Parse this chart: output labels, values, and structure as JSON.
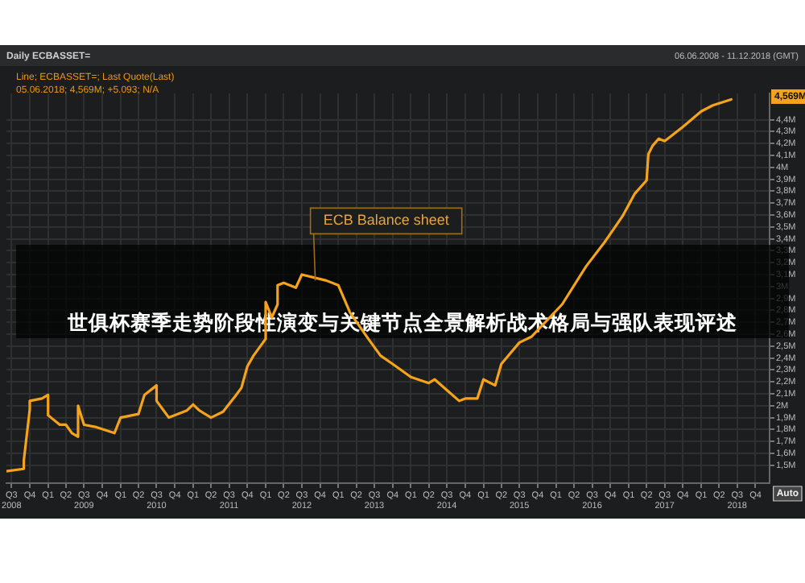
{
  "chart_data": {
    "type": "line",
    "title": "世俱杯赛季走势阶段性演变与关键节点全景解析战术格局与强队表现评述",
    "annotations": [
      "Daily ECBASSET=",
      "Line; ECBASSET=; Last Quote(Last)",
      "05.06.2018; 4,569M; +5.093; N/A",
      "06.06.2008 - 11.12.2018 (GMT)",
      "4,569M",
      "Auto",
      {
        "text": "ECB Balance sheet",
        "x": "2012-10",
        "y": 3.05
      }
    ],
    "x": [
      "2008-06-06",
      "2008-09",
      "2008-09",
      "2008-10",
      "2008-10",
      "2008-12",
      "2009-01",
      "2009-01",
      "2009-03",
      "2009-04",
      "2009-05",
      "2009-06",
      "2009-06",
      "2009-07",
      "2009-09",
      "2009-12",
      "2010-01",
      "2010-04",
      "2010-05",
      "2010-07",
      "2010-07",
      "2010-09",
      "2010-12",
      "2011-01",
      "2011-02",
      "2011-04",
      "2011-06",
      "2011-08",
      "2011-09",
      "2011-10",
      "2011-11",
      "2012-01",
      "2012-01",
      "2012-02",
      "2012-03",
      "2012-03",
      "2012-04",
      "2012-06",
      "2012-07",
      "2012-11",
      "2013-01",
      "2013-03",
      "2013-06",
      "2013-08",
      "2013-10",
      "2014-01",
      "2014-04",
      "2014-05",
      "2014-07",
      "2014-09",
      "2014-10",
      "2014-12",
      "2015-01",
      "2015-03",
      "2015-04",
      "2015-07",
      "2015-09",
      "2016-02",
      "2016-06",
      "2016-09",
      "2016-12",
      "2017-02",
      "2017-04-01",
      "2017-04-10",
      "2017-05",
      "2017-06",
      "2017-07",
      "2017-10",
      "2018-01",
      "2018-03",
      "2018-06"
    ],
    "series": [
      {
        "color": "#f5a31a",
        "values": [
          1.45,
          1.47,
          1.54,
          1.97,
          2.04,
          2.06,
          2.09,
          1.92,
          1.84,
          1.84,
          1.77,
          1.74,
          2.0,
          1.84,
          1.82,
          1.77,
          1.9,
          1.93,
          2.09,
          2.17,
          2.04,
          1.9,
          1.96,
          2.01,
          1.96,
          1.9,
          1.95,
          2.08,
          2.15,
          2.33,
          2.42,
          2.56,
          2.87,
          2.74,
          2.85,
          3.01,
          3.03,
          2.99,
          3.1,
          3.05,
          3.01,
          2.78,
          2.56,
          2.42,
          2.35,
          2.24,
          2.19,
          2.22,
          2.13,
          2.04,
          2.06,
          2.06,
          2.22,
          2.17,
          2.35,
          2.53,
          2.58,
          2.85,
          3.17,
          3.37,
          3.59,
          3.78,
          3.89,
          4.11,
          4.18,
          4.24,
          4.22,
          4.34,
          4.47,
          4.52,
          4.57
        ]
      }
    ],
    "xlim": [
      "2008-06-06",
      "2018-12-11"
    ],
    "xticks": [
      {
        "value": "2008-07-01",
        "label": "Q3\n2008"
      },
      {
        "value": "2008-10-01",
        "label": "Q4"
      },
      {
        "value": "2009-01-01",
        "label": "Q1"
      },
      {
        "value": "2009-04-01",
        "label": "Q2"
      },
      {
        "value": "2009-07-01",
        "label": "Q3\n2009"
      },
      {
        "value": "2009-10-01",
        "label": "Q4"
      },
      {
        "value": "2010-01-01",
        "label": "Q1"
      },
      {
        "value": "2010-04-01",
        "label": "Q2"
      },
      {
        "value": "2010-07-01",
        "label": "Q3\n2010"
      },
      {
        "value": "2010-10-01",
        "label": "Q4"
      },
      {
        "value": "2011-01-01",
        "label": "Q1"
      },
      {
        "value": "2011-04-01",
        "label": "Q2"
      },
      {
        "value": "2011-07-01",
        "label": "Q3\n2011"
      },
      {
        "value": "2011-10-01",
        "label": "Q4"
      },
      {
        "value": "2012-01-01",
        "label": "Q1"
      },
      {
        "value": "2012-04-01",
        "label": "Q2"
      },
      {
        "value": "2012-07-01",
        "label": "Q3\n2012"
      },
      {
        "value": "2012-10-01",
        "label": "Q4"
      },
      {
        "value": "2013-01-01",
        "label": "Q1"
      },
      {
        "value": "2013-04-01",
        "label": "Q2"
      },
      {
        "value": "2013-07-01",
        "label": "Q3\n2013"
      },
      {
        "value": "2013-10-01",
        "label": "Q4"
      },
      {
        "value": "2014-01-01",
        "label": "Q1"
      },
      {
        "value": "2014-04-01",
        "label": "Q2"
      },
      {
        "value": "2014-07-01",
        "label": "Q3\n2014"
      },
      {
        "value": "2014-10-01",
        "label": "Q4"
      },
      {
        "value": "2015-01-01",
        "label": "Q1"
      },
      {
        "value": "2015-04-01",
        "label": "Q2"
      },
      {
        "value": "2015-07-01",
        "label": "Q3\n2015"
      },
      {
        "value": "2015-10-01",
        "label": "Q4"
      },
      {
        "value": "2016-01-01",
        "label": "Q1"
      },
      {
        "value": "2016-04-01",
        "label": "Q2"
      },
      {
        "value": "2016-07-01",
        "label": "Q3\n2016"
      },
      {
        "value": "2016-10-01",
        "label": "Q4"
      },
      {
        "value": "2017-01-01",
        "label": "Q1"
      },
      {
        "value": "2017-04-01",
        "label": "Q2"
      },
      {
        "value": "2017-07-01",
        "label": "Q3\n2017"
      },
      {
        "value": "2017-10-01",
        "label": "Q4"
      },
      {
        "value": "2018-01-01",
        "label": "Q1"
      },
      {
        "value": "2018-04-01",
        "label": "Q2"
      },
      {
        "value": "2018-07-01",
        "label": "Q3\n2018"
      },
      {
        "value": "2018-10-01",
        "label": "Q4"
      }
    ],
    "ylim": [
      1.35,
      4.62
    ],
    "yticks": [
      {
        "value": 1.5,
        "label": "1,5M"
      },
      {
        "value": 1.6,
        "label": "1,6M"
      },
      {
        "value": 1.7,
        "label": "1,7M"
      },
      {
        "value": 1.8,
        "label": "1,8M"
      },
      {
        "value": 1.9,
        "label": "1,9M"
      },
      {
        "value": 2,
        "label": "2M"
      },
      {
        "value": 2.1,
        "label": "2,1M"
      },
      {
        "value": 2.2,
        "label": "2,2M"
      },
      {
        "value": 2.3,
        "label": "2,3M"
      },
      {
        "value": 2.4,
        "label": "2,4M"
      },
      {
        "value": 2.5,
        "label": "2,5M"
      },
      {
        "value": 2.6,
        "label": "2,6M"
      },
      {
        "value": 2.7,
        "label": "2,7M"
      },
      {
        "value": 2.8,
        "label": "2,8M"
      },
      {
        "value": 2.9,
        "label": "2,9M"
      },
      {
        "value": 3,
        "label": "3M"
      },
      {
        "value": 3.1,
        "label": "3,1M"
      },
      {
        "value": 3.2,
        "label": "3,2M"
      },
      {
        "value": 3.3,
        "label": "3,3M"
      },
      {
        "value": 3.4,
        "label": "3,4M"
      },
      {
        "value": 3.5,
        "label": "3,5M"
      },
      {
        "value": 3.6,
        "label": "3,6M"
      },
      {
        "value": 3.7,
        "label": "3,7M"
      },
      {
        "value": 3.8,
        "label": "3,8M"
      },
      {
        "value": 3.9,
        "label": "3,9M"
      },
      {
        "value": 4,
        "label": "4M"
      },
      {
        "value": 4.1,
        "label": "4,1M"
      },
      {
        "value": 4.2,
        "label": "4,2M"
      },
      {
        "value": 4.3,
        "label": "4,3M"
      },
      {
        "value": 4.4,
        "label": "4,4M"
      }
    ],
    "grid": true,
    "marker": "none",
    "line_style": "solid"
  }
}
